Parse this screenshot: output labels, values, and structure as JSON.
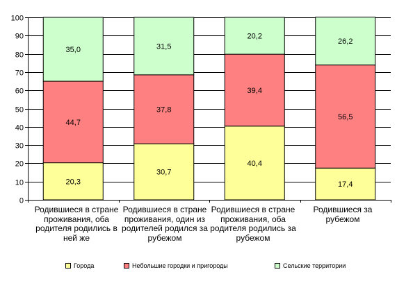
{
  "chart_data": {
    "type": "bar",
    "stacked": true,
    "categories": [
      "Родившиеся в стране проживания, оба родителя родились в ней же",
      "Родившиеся в стране проживания, один из родителей родился за рубежом",
      "Родившиеся в стране проживания, оба родителя родились за рубежом",
      "Родившиеся за рубежом"
    ],
    "series": [
      {
        "name": "Города",
        "color": "#FFFF99",
        "values": [
          20.3,
          30.7,
          40.4,
          17.4
        ],
        "labels": [
          "20,3",
          "30,7",
          "40,4",
          "17,4"
        ]
      },
      {
        "name": "Небольшие городки и пригороды",
        "color": "#FF8080",
        "values": [
          44.7,
          37.8,
          39.4,
          56.5
        ],
        "labels": [
          "44,7",
          "37,8",
          "39,4",
          "56,5"
        ]
      },
      {
        "name": "Сельские территории",
        "color": "#CCFFCC",
        "values": [
          35.0,
          31.5,
          20.2,
          26.2
        ],
        "labels": [
          "35,0",
          "31,5",
          "20,2",
          "26,2"
        ]
      }
    ],
    "ylim": [
      0,
      100
    ],
    "yticks": [
      0,
      10,
      20,
      30,
      40,
      50,
      60,
      70,
      80,
      90,
      100
    ],
    "grid": true,
    "legend_position": "bottom",
    "title": "",
    "xlabel": "",
    "ylabel": ""
  }
}
